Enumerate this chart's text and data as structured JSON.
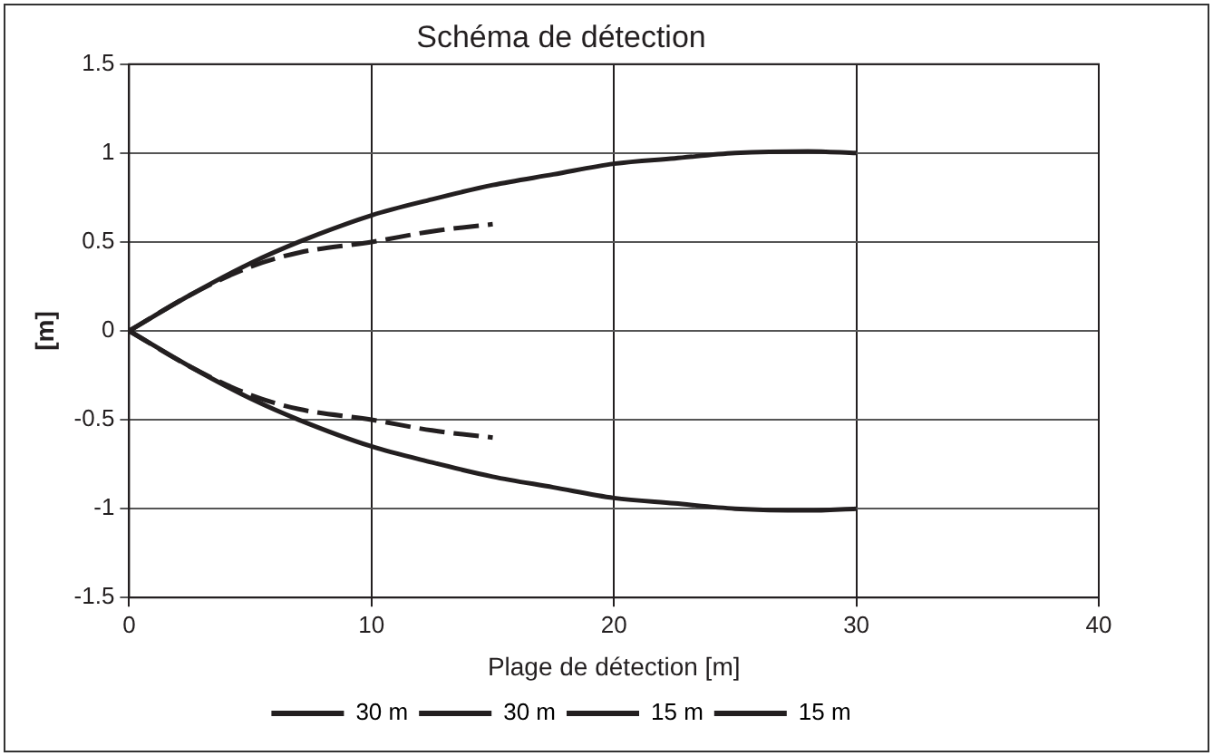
{
  "chart_data": {
    "type": "line",
    "title": "Schéma de détection",
    "xlabel": "Plage de détection [m]",
    "ylabel": "[m]",
    "xlim": [
      0,
      40
    ],
    "xticks": [
      0,
      10,
      20,
      30,
      40
    ],
    "ylim": [
      -1.5,
      1.5
    ],
    "yticks": [
      -1.5,
      -1,
      -0.5,
      0,
      0.5,
      1,
      1.5
    ],
    "grid": true,
    "legend": "bottom",
    "marker": "none",
    "series": [
      {
        "name": "30 m",
        "color": "#231f20",
        "line_style": "solid",
        "x": [
          0,
          2.5,
          5,
          7,
          10,
          12.5,
          15,
          17.5,
          20,
          22.5,
          25,
          28,
          30
        ],
        "values": [
          0,
          0.2,
          0.38,
          0.5,
          0.65,
          0.74,
          0.82,
          0.88,
          0.94,
          0.97,
          1,
          1.01,
          1
        ]
      },
      {
        "name": "30 m",
        "color": "#231f20",
        "line_style": "solid",
        "x": [
          0,
          2.5,
          5,
          7,
          10,
          12.5,
          15,
          17.5,
          20,
          22.5,
          25,
          28,
          30
        ],
        "values": [
          0,
          -0.2,
          -0.38,
          -0.5,
          -0.65,
          -0.74,
          -0.82,
          -0.88,
          -0.94,
          -0.97,
          -1,
          -1.01,
          -1
        ]
      },
      {
        "name": "15 m",
        "color": "#231f20",
        "line_style": "dashed",
        "x": [
          0,
          2.5,
          5,
          7,
          10,
          12.5,
          15
        ],
        "values": [
          0,
          0.2,
          0.36,
          0.44,
          0.5,
          0.56,
          0.6
        ]
      },
      {
        "name": "15 m",
        "color": "#231f20",
        "line_style": "dashed",
        "x": [
          0,
          2.5,
          5,
          7,
          10,
          12.5,
          15
        ],
        "values": [
          0,
          -0.2,
          -0.36,
          -0.44,
          -0.5,
          -0.56,
          -0.6
        ]
      }
    ]
  }
}
